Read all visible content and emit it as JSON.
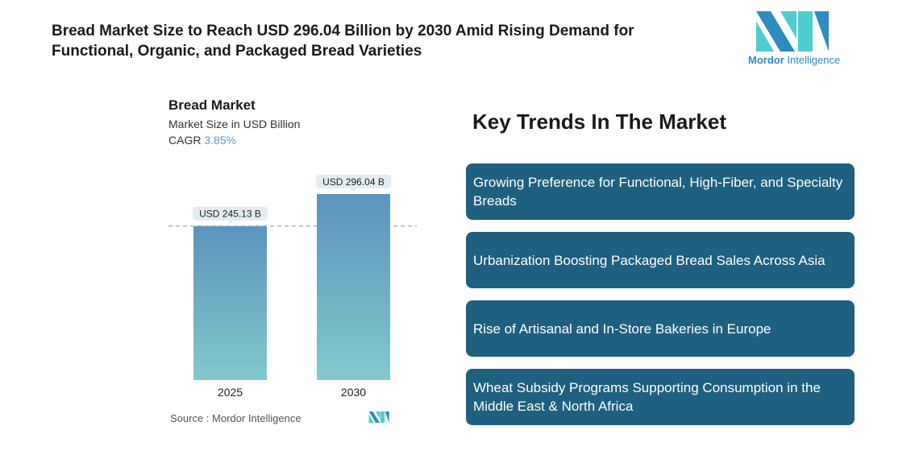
{
  "title": "Bread Market Size to Reach USD 296.04 Billion by 2030 Amid Rising Demand for Functional, Organic, and Packaged Bread Varieties",
  "logo": {
    "brand_a": "Mordor",
    "brand_b": "Intelligence",
    "colors": [
      "#2e8bc0",
      "#4ecdd0"
    ]
  },
  "chart_data": {
    "type": "bar",
    "title": "Bread Market",
    "subtitle": "Market Size in USD Billion",
    "cagr_label": "CAGR",
    "cagr_value": "3.85%",
    "categories": [
      "2025",
      "2030"
    ],
    "values": [
      245.13,
      296.04
    ],
    "data_labels": [
      "USD 245.13 B",
      "USD 296.04 B"
    ],
    "ylim": [
      0,
      296.04
    ],
    "grid": false,
    "bar_color_top": "#5b93bb",
    "bar_color_bottom": "#82c9cc"
  },
  "source": "Source :  Mordor Intelligence",
  "key_trends": {
    "heading": "Key Trends In The Market",
    "items": [
      "Growing Preference for Functional, High-Fiber, and Specialty Breads",
      "Urbanization Boosting Packaged Bread Sales Across Asia",
      "Rise of Artisanal and In-Store Bakeries in Europe",
      "Wheat Subsidy Programs Supporting Consumption in the Middle East & North Africa"
    ],
    "box_color": "#1f5f7f"
  }
}
